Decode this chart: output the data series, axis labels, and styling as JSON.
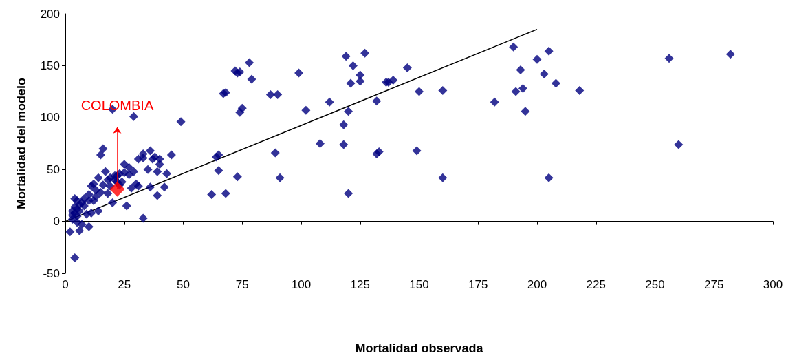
{
  "chart_data": {
    "type": "scatter",
    "xlabel": "Mortalidad observada",
    "ylabel": "Mortalidad del modelo",
    "xlim": [
      0,
      300
    ],
    "xticks": [
      0,
      25,
      50,
      75,
      100,
      125,
      150,
      175,
      200,
      225,
      250,
      275,
      300
    ],
    "ylim": [
      -50,
      200
    ],
    "yticks": [
      -50,
      0,
      50,
      100,
      150,
      200
    ],
    "marker": "diamond",
    "annotations": [
      {
        "text": "COLOMBIA",
        "x": 22,
        "y": 31
      }
    ],
    "series": [
      {
        "color": "#000080",
        "x": [
          282,
          256,
          260,
          218,
          208,
          205,
          203,
          200,
          195,
          194,
          193,
          191,
          190,
          182,
          205,
          160,
          160,
          150,
          149,
          145,
          139,
          137,
          136,
          132,
          133,
          132,
          127,
          125,
          125,
          122,
          121,
          120,
          119,
          118,
          118,
          120,
          112,
          108,
          102,
          99,
          91,
          90,
          89,
          87,
          79,
          78,
          75,
          74,
          74,
          73,
          72,
          68,
          67,
          73,
          68,
          65,
          65,
          64,
          62,
          49,
          45,
          43,
          42,
          40,
          40,
          39,
          39,
          38,
          37,
          36,
          36,
          35,
          33,
          33,
          33,
          31,
          31,
          30,
          29,
          29,
          28,
          27,
          27,
          26,
          25,
          25,
          24,
          23,
          23,
          22,
          22,
          21,
          21,
          20,
          20,
          19,
          19,
          18,
          18,
          17,
          16,
          16,
          15,
          15,
          14,
          13,
          13,
          12,
          12,
          11,
          10,
          10,
          9,
          10,
          8,
          8,
          7,
          7,
          6,
          6,
          5,
          5,
          5,
          5,
          4,
          4,
          4,
          3,
          3,
          2,
          6,
          4,
          3,
          11,
          14
        ],
        "values": [
          161,
          157,
          74,
          126,
          133,
          164,
          142,
          156,
          106,
          128,
          146,
          125,
          168,
          115,
          42,
          126,
          42,
          125,
          68,
          148,
          136,
          134,
          134,
          116,
          67,
          65,
          162,
          135,
          141,
          150,
          133,
          106,
          159,
          93,
          74,
          27,
          115,
          75,
          107,
          143,
          42,
          122,
          66,
          122,
          137,
          153,
          109,
          105,
          144,
          143,
          145,
          124,
          123,
          43,
          27,
          64,
          49,
          62,
          26,
          96,
          64,
          46,
          33,
          60,
          55,
          48,
          25,
          62,
          60,
          68,
          33,
          50,
          61,
          65,
          3,
          60,
          34,
          36,
          101,
          48,
          32,
          52,
          45,
          15,
          47,
          55,
          38,
          35,
          46,
          44,
          38,
          44,
          40,
          108,
          18,
          42,
          34,
          27,
          40,
          48,
          70,
          35,
          64,
          28,
          42,
          30,
          24,
          36,
          20,
          34,
          26,
          20,
          7,
          -5,
          22,
          15,
          18,
          -3,
          16,
          10,
          20,
          12,
          5,
          -1,
          14,
          22,
          8,
          10,
          2,
          -10,
          -9,
          -35,
          6,
          8,
          10
        ]
      },
      {
        "color": "#ff0000",
        "x": [
          22
        ],
        "values": [
          31
        ]
      },
      {
        "type": "line",
        "color": "#000000",
        "marker": "none",
        "x": [
          0,
          200
        ],
        "values": [
          0,
          185
        ]
      }
    ]
  }
}
